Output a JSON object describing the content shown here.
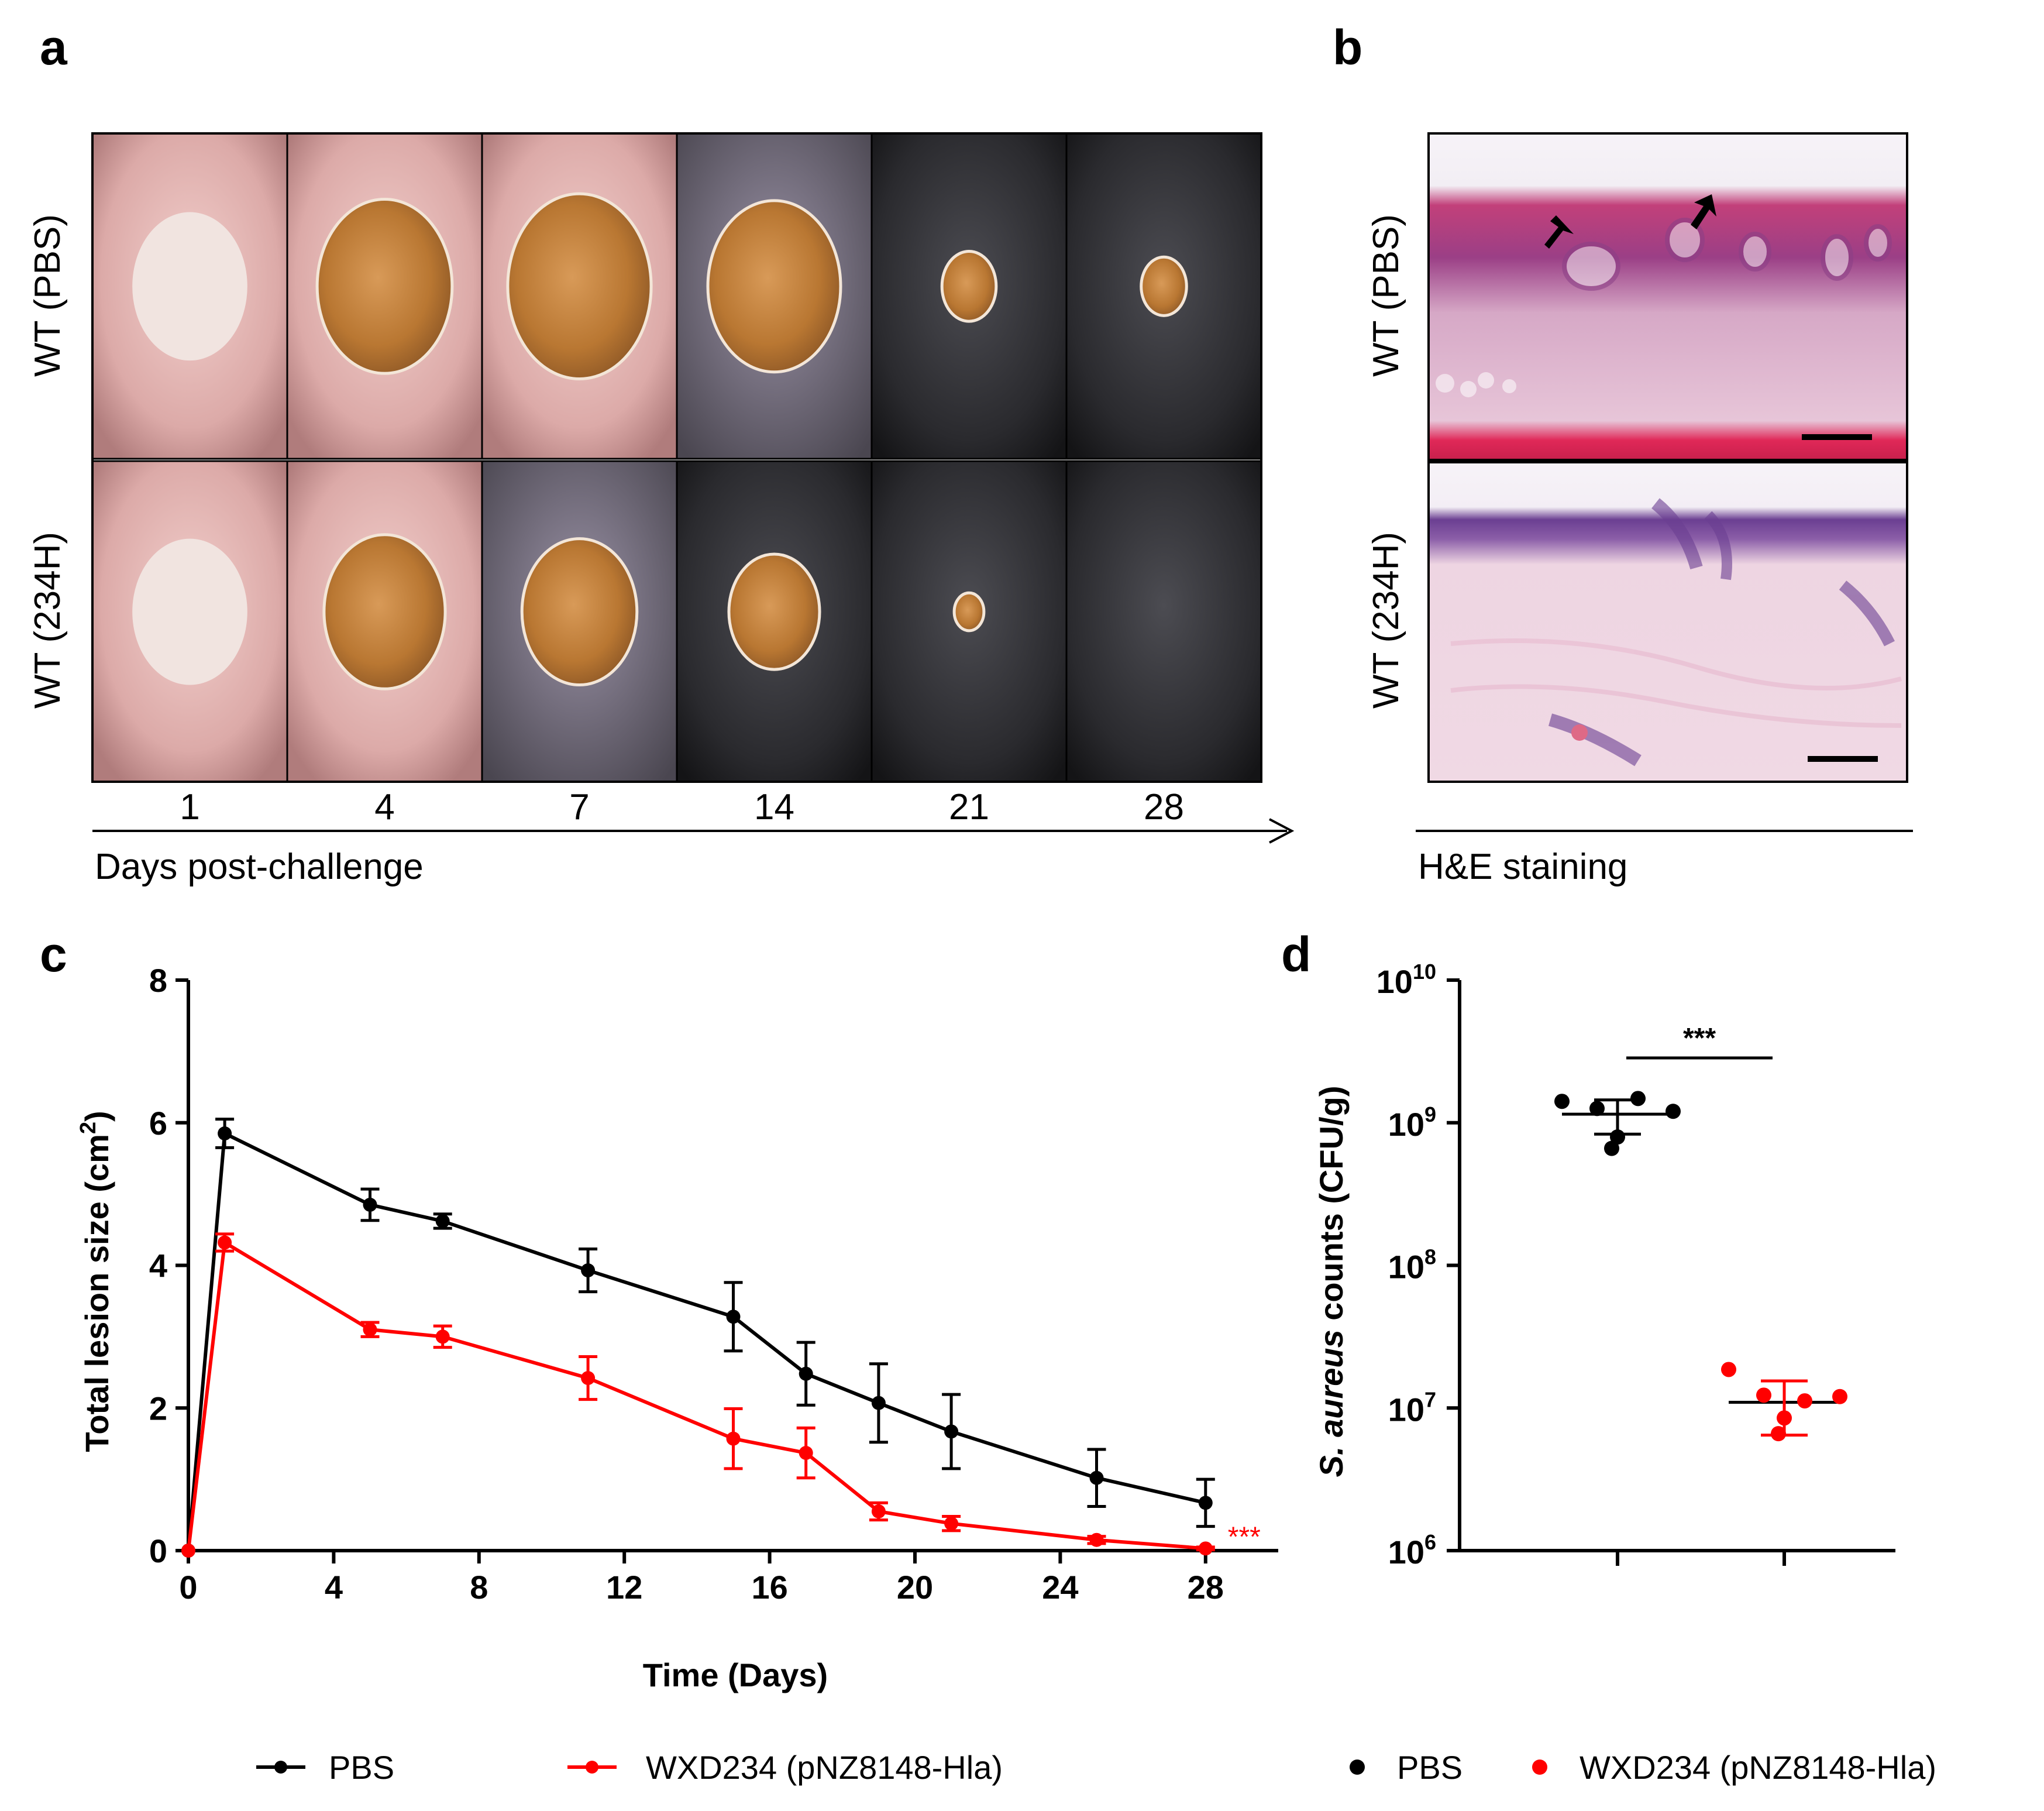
{
  "panel_labels": [
    "a",
    "b",
    "c",
    "d"
  ],
  "panel_a": {
    "row_labels": [
      "WT (PBS)",
      "WT (234H)"
    ],
    "day_labels": [
      "1",
      "4",
      "7",
      "14",
      "21",
      "28"
    ],
    "axis_caption": "Days post-challenge",
    "lesion_area_photo_pbs": [
      0.45,
      0.62,
      0.7,
      0.6,
      0.1,
      0.07
    ],
    "lesion_area_photo_234h": [
      0.45,
      0.5,
      0.45,
      0.28,
      0.03,
      0.0
    ]
  },
  "panel_b": {
    "row_labels": [
      "WT (PBS)",
      "WT (234H)"
    ],
    "caption": "H&E staining"
  },
  "chart_data": [
    {
      "type": "line",
      "panel": "c",
      "title": "",
      "xlabel": "Time (Days)",
      "ylabel": "Total lesion size (cm²)",
      "ylabel_main": "Total lesion size (cm",
      "ylabel_sup": "2",
      "ylabel_close": ")",
      "xlim": [
        0,
        30
      ],
      "ylim": [
        0,
        8
      ],
      "xticks": [
        0,
        4,
        8,
        12,
        16,
        20,
        24,
        28
      ],
      "xtick_labels": [
        "0",
        "4",
        "8",
        "12",
        "16",
        "20",
        "24",
        "28"
      ],
      "yticks": [
        0,
        2,
        4,
        6,
        8
      ],
      "ytick_labels": [
        "0",
        "2",
        "4",
        "6",
        "8"
      ],
      "annotation": "***",
      "legend_position": "bottom",
      "series": [
        {
          "name": "PBS",
          "color": "#000000",
          "x": [
            0,
            1,
            5,
            7,
            11,
            15,
            17,
            19,
            21,
            25,
            28
          ],
          "y": [
            0,
            5.85,
            4.85,
            4.62,
            3.93,
            3.28,
            2.48,
            2.07,
            1.67,
            1.02,
            0.67
          ],
          "err": [
            0,
            0.2,
            0.22,
            0.1,
            0.3,
            0.48,
            0.44,
            0.55,
            0.52,
            0.4,
            0.33
          ]
        },
        {
          "name": "WXD234 (pNZ8148-Hla)",
          "color": "#ff0000",
          "x": [
            0,
            1,
            5,
            7,
            11,
            15,
            17,
            19,
            21,
            25,
            28
          ],
          "y": [
            0,
            4.32,
            3.1,
            3.0,
            2.42,
            1.57,
            1.37,
            0.55,
            0.38,
            0.15,
            0.03
          ],
          "err": [
            0,
            0.12,
            0.1,
            0.15,
            0.3,
            0.42,
            0.35,
            0.12,
            0.1,
            0.05,
            0.02
          ]
        }
      ]
    },
    {
      "type": "scatter",
      "panel": "d",
      "title": "",
      "xlabel": "",
      "ylabel": "S. aureus counts (CFU/g)",
      "ylabel_italic": "S. aureus",
      "ylabel_rest": " counts (CFU/g)",
      "yscale": "log10",
      "ylim_exp": [
        6,
        10
      ],
      "ytick_bases": [
        "10",
        "10",
        "10",
        "10",
        "10"
      ],
      "ytick_exps": [
        "6",
        "7",
        "8",
        "9",
        "10"
      ],
      "annotation": "***",
      "legend_position": "bottom",
      "groups": [
        {
          "name": "PBS",
          "color": "#000000",
          "values_log": [
            9.15,
            9.1,
            9.17,
            9.08,
            8.9,
            8.82
          ],
          "mean_log": 9.06,
          "sd_upper_log": 9.16,
          "sd_lower_log": 8.92
        },
        {
          "name": "WXD234 (pNZ8148-Hla)",
          "color": "#ff0000",
          "values_log": [
            7.27,
            7.09,
            7.05,
            7.08,
            6.93,
            6.82
          ],
          "mean_log": 7.04,
          "sd_upper_log": 7.19,
          "sd_lower_log": 6.81
        }
      ]
    }
  ],
  "legend_c": [
    "PBS",
    "WXD234 (pNZ8148-Hla)"
  ],
  "legend_d": [
    "PBS",
    "WXD234 (pNZ8148-Hla)"
  ]
}
